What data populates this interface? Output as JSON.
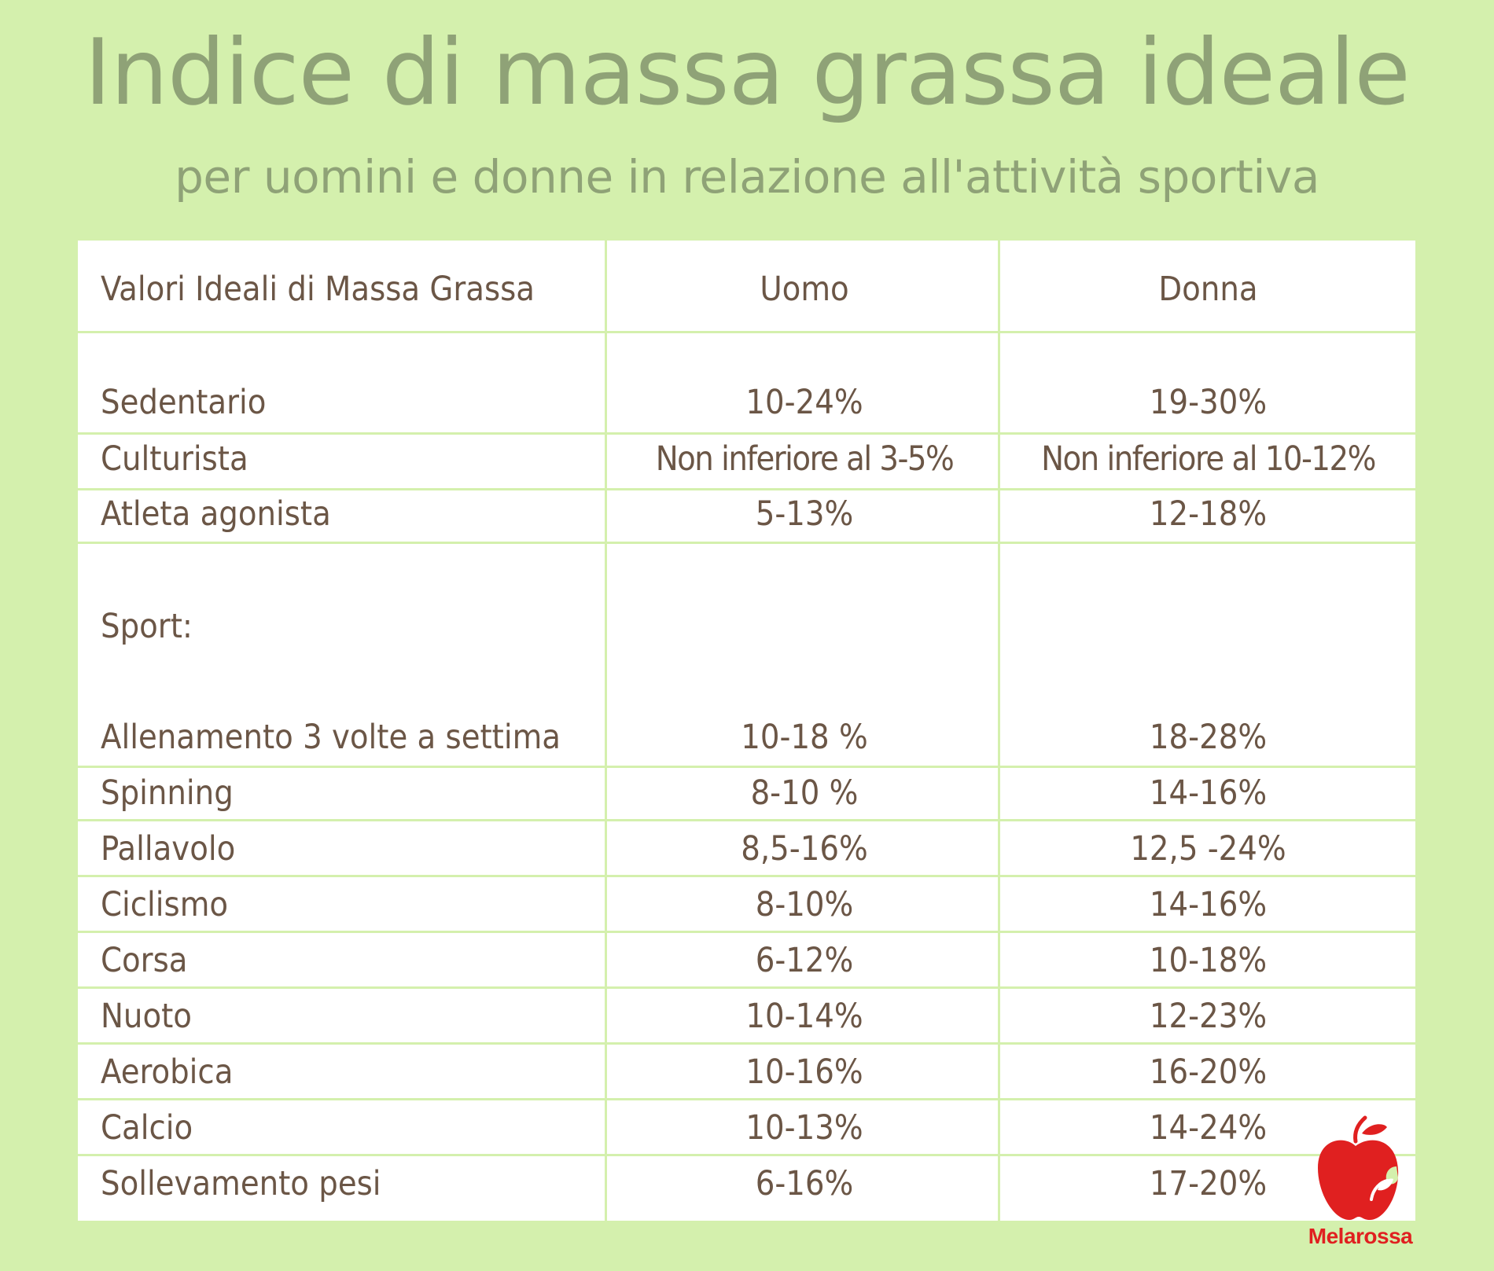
{
  "title": "Indice di massa grassa ideale",
  "subtitle": "per uomini e donne in relazione all'attività sportiva",
  "table": {
    "headers": [
      "Valori Ideali di Massa Grassa",
      "Uomo",
      "Donna"
    ],
    "rows": [
      [
        "Sedentario",
        "10-24%",
        "19-30%"
      ],
      [
        "Culturista",
        "Non inferiore al 3-5%",
        "Non inferiore al 10-12%"
      ],
      [
        "Atleta agonista",
        "5-13%",
        "12-18%"
      ],
      [
        "Sport:",
        "",
        ""
      ],
      [
        "Allenamento 3 volte a settima",
        "10-18 %",
        "18-28%"
      ],
      [
        "Spinning",
        "8-10 %",
        "14-16%"
      ],
      [
        "Pallavolo",
        "8,5-16%",
        "12,5 -24%"
      ],
      [
        "Ciclismo",
        "8-10%",
        "14-16%"
      ],
      [
        "Corsa",
        "6-12%",
        "10-18%"
      ],
      [
        "Nuoto",
        "10-14%",
        "12-23%"
      ],
      [
        "Aerobica",
        "10-16%",
        "16-20%"
      ],
      [
        "Calcio",
        "10-13%",
        "14-24%"
      ],
      [
        "Sollevamento pesi",
        "6-16%",
        "17-20%"
      ]
    ]
  },
  "logo": {
    "text": "Melarossa",
    "icon": "apple-icon",
    "color": "#e02020"
  },
  "colors": {
    "background": "#d4f0ad",
    "title": "#8fa277",
    "table_text": "#6b5646"
  }
}
